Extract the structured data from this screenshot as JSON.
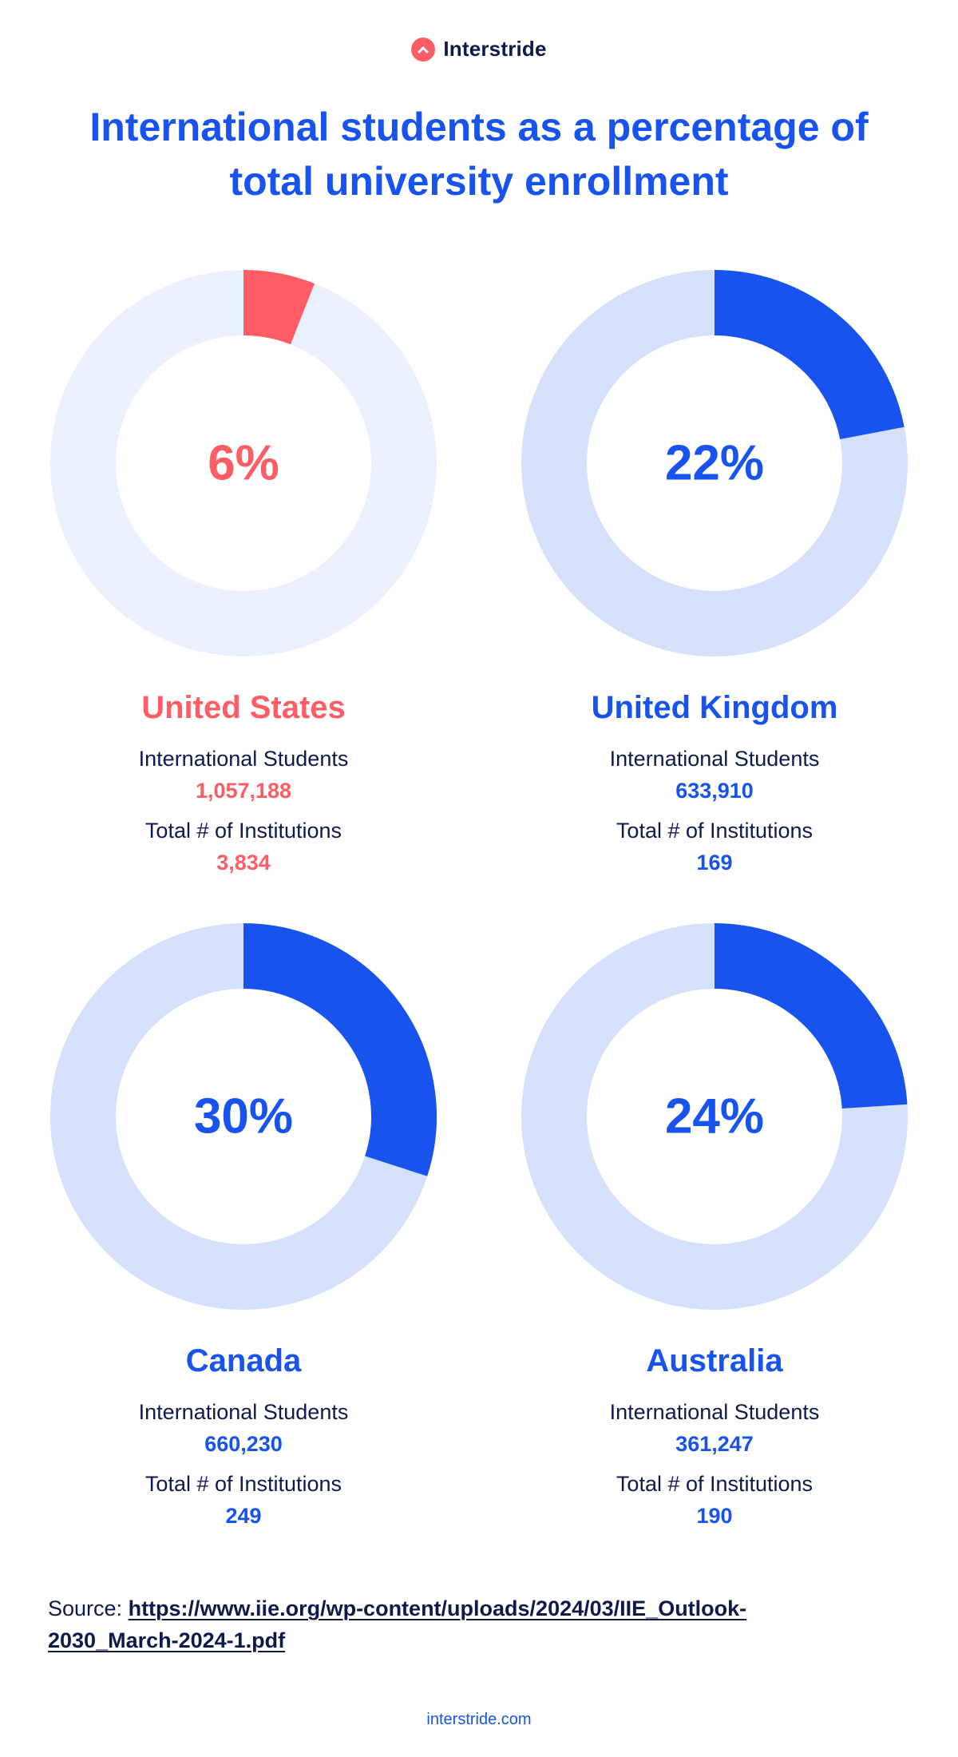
{
  "brand": {
    "name": "Interstride",
    "logo_color": "#ff5d65"
  },
  "title": "International students as a percentage of total university enrollment",
  "colors": {
    "us_accent": "#ff5d65",
    "us_track": "#eaf0fd",
    "blue_accent": "#1753ec",
    "blue_track": "#d5e1fb",
    "dark_text": "#0d1b4c"
  },
  "chart_data": [
    {
      "type": "pie",
      "variant": "donut",
      "country": "United States",
      "percent": 6,
      "percent_label": "6%",
      "international_students_label": "International Students",
      "international_students": "1,057,188",
      "institutions_label": "Total # of Institutions",
      "institutions": "3,834",
      "accent": "#ff5d65",
      "track": "#eaf0fd"
    },
    {
      "type": "pie",
      "variant": "donut",
      "country": "United Kingdom",
      "percent": 22,
      "percent_label": "22%",
      "international_students_label": "International Students",
      "international_students": "633,910",
      "institutions_label": "Total # of Institutions",
      "institutions": "169",
      "accent": "#1753ec",
      "track": "#d5e1fb"
    },
    {
      "type": "pie",
      "variant": "donut",
      "country": "Canada",
      "percent": 30,
      "percent_label": "30%",
      "international_students_label": "International Students",
      "international_students": "660,230",
      "institutions_label": "Total # of Institutions",
      "institutions": "249",
      "accent": "#1753ec",
      "track": "#d5e1fb"
    },
    {
      "type": "pie",
      "variant": "donut",
      "country": "Australia",
      "percent": 24,
      "percent_label": "24%",
      "international_students_label": "International Students",
      "international_students": "361,247",
      "institutions_label": "Total # of Institutions",
      "institutions": "190",
      "accent": "#1753ec",
      "track": "#d5e1fb"
    }
  ],
  "source": {
    "label": "Source:",
    "link_text": "https://www.iie.org/wp-content/uploads/2024/03/IIE_Outlook-2030_March-2024-1.pdf"
  },
  "footer": "interstride.com"
}
